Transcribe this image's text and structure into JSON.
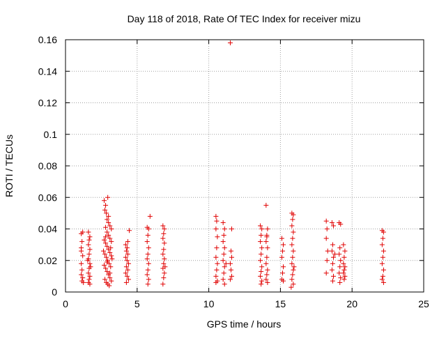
{
  "chart_data": {
    "type": "scatter",
    "title": "Day 118 of 2018, Rate Of TEC Index for receiver mizu",
    "xlabel": "GPS time / hours",
    "ylabel": "ROTI / TECUs",
    "xlim": [
      0,
      25
    ],
    "ylim": [
      0,
      0.16
    ],
    "xticks": [
      0,
      5,
      10,
      15,
      20,
      25
    ],
    "yticks": [
      0,
      0.02,
      0.04,
      0.06,
      0.08,
      0.1,
      0.12,
      0.14,
      0.16
    ],
    "xtick_labels": [
      "0",
      "5",
      "10",
      "15",
      "20",
      "25"
    ],
    "ytick_labels": [
      "0",
      "0.02",
      "0.04",
      "0.06",
      "0.08",
      "0.1",
      "0.12",
      "0.14",
      "0.16"
    ],
    "grid": true,
    "marker": "+",
    "series": [
      {
        "name": "ROTI",
        "color": "#e00000",
        "points": [
          [
            1.1,
            0.037
          ],
          [
            1.15,
            0.032
          ],
          [
            1.1,
            0.028
          ],
          [
            1.2,
            0.023
          ],
          [
            1.1,
            0.018
          ],
          [
            1.15,
            0.014
          ],
          [
            1.1,
            0.011
          ],
          [
            1.2,
            0.009
          ],
          [
            1.15,
            0.007
          ],
          [
            1.25,
            0.006
          ],
          [
            1.2,
            0.038
          ],
          [
            1.1,
            0.026
          ],
          [
            1.6,
            0.038
          ],
          [
            1.7,
            0.035
          ],
          [
            1.65,
            0.033
          ],
          [
            1.6,
            0.03
          ],
          [
            1.7,
            0.027
          ],
          [
            1.65,
            0.024
          ],
          [
            1.6,
            0.021
          ],
          [
            1.7,
            0.018
          ],
          [
            1.65,
            0.015
          ],
          [
            1.6,
            0.012
          ],
          [
            1.7,
            0.01
          ],
          [
            1.65,
            0.008
          ],
          [
            1.6,
            0.006
          ],
          [
            1.7,
            0.005
          ],
          [
            1.75,
            0.016
          ],
          [
            1.55,
            0.02
          ],
          [
            2.7,
            0.058
          ],
          [
            2.8,
            0.055
          ],
          [
            2.75,
            0.052
          ],
          [
            2.85,
            0.05
          ],
          [
            2.9,
            0.046
          ],
          [
            3.0,
            0.044
          ],
          [
            3.1,
            0.042
          ],
          [
            3.2,
            0.04
          ],
          [
            2.8,
            0.041
          ],
          [
            2.9,
            0.038
          ],
          [
            3.0,
            0.036
          ],
          [
            3.1,
            0.034
          ],
          [
            3.2,
            0.032
          ],
          [
            2.7,
            0.033
          ],
          [
            2.8,
            0.031
          ],
          [
            2.9,
            0.029
          ],
          [
            3.0,
            0.027
          ],
          [
            3.1,
            0.025
          ],
          [
            3.2,
            0.023
          ],
          [
            2.75,
            0.024
          ],
          [
            2.85,
            0.022
          ],
          [
            2.95,
            0.02
          ],
          [
            3.05,
            0.018
          ],
          [
            3.15,
            0.016
          ],
          [
            2.7,
            0.017
          ],
          [
            2.8,
            0.015
          ],
          [
            2.9,
            0.013
          ],
          [
            3.0,
            0.011
          ],
          [
            3.1,
            0.009
          ],
          [
            3.2,
            0.007
          ],
          [
            2.75,
            0.008
          ],
          [
            2.85,
            0.006
          ],
          [
            2.95,
            0.005
          ],
          [
            3.05,
            0.004
          ],
          [
            3.15,
            0.028
          ],
          [
            3.25,
            0.021
          ],
          [
            2.65,
            0.026
          ],
          [
            2.95,
            0.06
          ],
          [
            3.0,
            0.048
          ],
          [
            2.8,
            0.035
          ],
          [
            3.1,
            0.012
          ],
          [
            2.9,
            0.019
          ],
          [
            4.2,
            0.03
          ],
          [
            4.3,
            0.028
          ],
          [
            4.25,
            0.026
          ],
          [
            4.35,
            0.024
          ],
          [
            4.2,
            0.022
          ],
          [
            4.3,
            0.02
          ],
          [
            4.4,
            0.018
          ],
          [
            4.25,
            0.016
          ],
          [
            4.35,
            0.014
          ],
          [
            4.2,
            0.012
          ],
          [
            4.3,
            0.01
          ],
          [
            4.4,
            0.008
          ],
          [
            4.25,
            0.006
          ],
          [
            4.45,
            0.039
          ],
          [
            4.35,
            0.032
          ],
          [
            5.7,
            0.041
          ],
          [
            5.8,
            0.04
          ],
          [
            5.75,
            0.036
          ],
          [
            5.7,
            0.032
          ],
          [
            5.8,
            0.028
          ],
          [
            5.75,
            0.024
          ],
          [
            5.7,
            0.021
          ],
          [
            5.8,
            0.018
          ],
          [
            5.75,
            0.014
          ],
          [
            5.7,
            0.011
          ],
          [
            5.8,
            0.008
          ],
          [
            5.75,
            0.005
          ],
          [
            5.9,
            0.048
          ],
          [
            6.8,
            0.042
          ],
          [
            6.9,
            0.04
          ],
          [
            6.85,
            0.037
          ],
          [
            6.8,
            0.034
          ],
          [
            6.9,
            0.031
          ],
          [
            6.85,
            0.027
          ],
          [
            6.8,
            0.024
          ],
          [
            6.9,
            0.021
          ],
          [
            6.85,
            0.018
          ],
          [
            6.8,
            0.015
          ],
          [
            6.9,
            0.012
          ],
          [
            6.85,
            0.009
          ],
          [
            6.8,
            0.005
          ],
          [
            6.95,
            0.016
          ],
          [
            10.5,
            0.048
          ],
          [
            10.55,
            0.045
          ],
          [
            10.5,
            0.04
          ],
          [
            10.6,
            0.035
          ],
          [
            10.55,
            0.028
          ],
          [
            10.5,
            0.022
          ],
          [
            10.6,
            0.018
          ],
          [
            10.55,
            0.014
          ],
          [
            10.5,
            0.01
          ],
          [
            10.6,
            0.007
          ],
          [
            10.5,
            0.006
          ],
          [
            11.0,
            0.044
          ],
          [
            11.1,
            0.04
          ],
          [
            11.05,
            0.036
          ],
          [
            11.0,
            0.032
          ],
          [
            11.1,
            0.028
          ],
          [
            11.05,
            0.024
          ],
          [
            11.0,
            0.02
          ],
          [
            11.1,
            0.016
          ],
          [
            11.05,
            0.012
          ],
          [
            11.0,
            0.008
          ],
          [
            11.1,
            0.005
          ],
          [
            11.2,
            0.018
          ],
          [
            11.5,
            0.158
          ],
          [
            11.6,
            0.04
          ],
          [
            11.55,
            0.026
          ],
          [
            11.6,
            0.022
          ],
          [
            11.5,
            0.018
          ],
          [
            11.55,
            0.014
          ],
          [
            11.6,
            0.01
          ],
          [
            11.5,
            0.008
          ],
          [
            13.6,
            0.042
          ],
          [
            13.7,
            0.04
          ],
          [
            13.65,
            0.036
          ],
          [
            13.6,
            0.032
          ],
          [
            13.7,
            0.028
          ],
          [
            13.65,
            0.024
          ],
          [
            13.6,
            0.02
          ],
          [
            13.7,
            0.016
          ],
          [
            13.65,
            0.013
          ],
          [
            13.6,
            0.01
          ],
          [
            13.7,
            0.007
          ],
          [
            13.65,
            0.005
          ],
          [
            14.0,
            0.055
          ],
          [
            14.1,
            0.04
          ],
          [
            14.05,
            0.036
          ],
          [
            14.0,
            0.032
          ],
          [
            14.1,
            0.028
          ],
          [
            14.05,
            0.022
          ],
          [
            14.0,
            0.018
          ],
          [
            14.1,
            0.014
          ],
          [
            14.05,
            0.011
          ],
          [
            14.0,
            0.008
          ],
          [
            14.1,
            0.006
          ],
          [
            14.05,
            0.035
          ],
          [
            15.1,
            0.034
          ],
          [
            15.2,
            0.03
          ],
          [
            15.15,
            0.026
          ],
          [
            15.1,
            0.022
          ],
          [
            15.2,
            0.016
          ],
          [
            15.15,
            0.012
          ],
          [
            15.1,
            0.008
          ],
          [
            15.2,
            0.007
          ],
          [
            15.8,
            0.05
          ],
          [
            15.9,
            0.049
          ],
          [
            15.85,
            0.046
          ],
          [
            15.8,
            0.042
          ],
          [
            15.9,
            0.038
          ],
          [
            15.85,
            0.034
          ],
          [
            15.8,
            0.03
          ],
          [
            15.9,
            0.026
          ],
          [
            15.85,
            0.022
          ],
          [
            15.8,
            0.018
          ],
          [
            15.9,
            0.014
          ],
          [
            15.85,
            0.011
          ],
          [
            15.8,
            0.008
          ],
          [
            15.9,
            0.005
          ],
          [
            15.75,
            0.003
          ],
          [
            15.95,
            0.016
          ],
          [
            18.2,
            0.045
          ],
          [
            18.25,
            0.04
          ],
          [
            18.2,
            0.034
          ],
          [
            18.3,
            0.026
          ],
          [
            18.25,
            0.02
          ],
          [
            18.2,
            0.012
          ],
          [
            18.6,
            0.044
          ],
          [
            18.7,
            0.042
          ],
          [
            18.65,
            0.03
          ],
          [
            18.6,
            0.026
          ],
          [
            18.7,
            0.022
          ],
          [
            18.65,
            0.018
          ],
          [
            18.6,
            0.014
          ],
          [
            18.7,
            0.01
          ],
          [
            18.65,
            0.007
          ],
          [
            18.8,
            0.024
          ],
          [
            19.1,
            0.044
          ],
          [
            19.2,
            0.043
          ],
          [
            19.15,
            0.028
          ],
          [
            19.1,
            0.024
          ],
          [
            19.2,
            0.02
          ],
          [
            19.15,
            0.016
          ],
          [
            19.1,
            0.012
          ],
          [
            19.2,
            0.009
          ],
          [
            19.15,
            0.006
          ],
          [
            19.4,
            0.03
          ],
          [
            19.5,
            0.026
          ],
          [
            19.45,
            0.022
          ],
          [
            19.4,
            0.018
          ],
          [
            19.5,
            0.016
          ],
          [
            19.45,
            0.014
          ],
          [
            19.4,
            0.012
          ],
          [
            19.5,
            0.01
          ],
          [
            19.45,
            0.008
          ],
          [
            22.1,
            0.039
          ],
          [
            22.2,
            0.038
          ],
          [
            22.15,
            0.034
          ],
          [
            22.1,
            0.03
          ],
          [
            22.2,
            0.026
          ],
          [
            22.15,
            0.022
          ],
          [
            22.1,
            0.018
          ],
          [
            22.2,
            0.014
          ],
          [
            22.15,
            0.01
          ],
          [
            22.1,
            0.008
          ],
          [
            22.2,
            0.006
          ]
        ]
      }
    ]
  }
}
